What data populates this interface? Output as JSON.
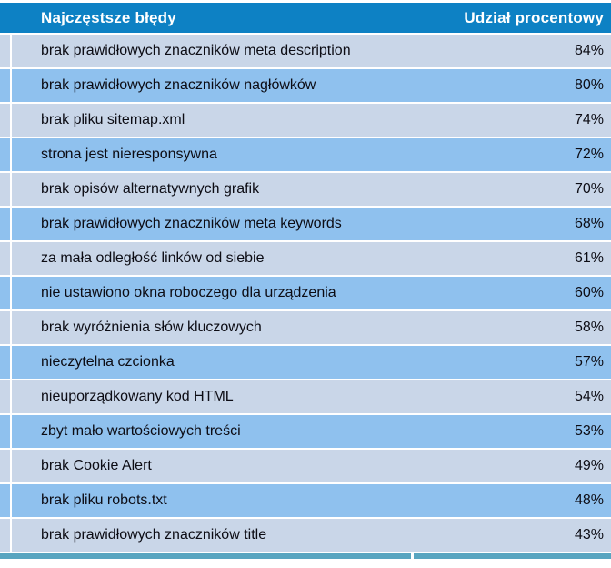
{
  "table": {
    "header": {
      "errors_label": "Najczęstsze błędy",
      "share_label": "Udział procentowy"
    },
    "rows": [
      {
        "label": "brak prawidłowych znaczników meta description",
        "value": "84%"
      },
      {
        "label": "brak prawidłowych znaczników nagłówków",
        "value": "80%"
      },
      {
        "label": "brak pliku sitemap.xml",
        "value": "74%"
      },
      {
        "label": "strona jest nieresponsywna",
        "value": "72%"
      },
      {
        "label": "brak opisów alternatywnych grafik",
        "value": "70%"
      },
      {
        "label": "brak prawidłowych znaczników meta keywords",
        "value": "68%"
      },
      {
        "label": "za mała odległość linków od siebie",
        "value": "61%"
      },
      {
        "label": "nie ustawiono okna roboczego dla urządzenia",
        "value": "60%"
      },
      {
        "label": "brak wyróżnienia słów kluczowych",
        "value": "58%"
      },
      {
        "label": "nieczytelna czcionka",
        "value": "57%"
      },
      {
        "label": "nieuporządkowany kod HTML",
        "value": "54%"
      },
      {
        "label": "zbyt mało wartościowych treści",
        "value": "53%"
      },
      {
        "label": "brak Cookie Alert",
        "value": "49%"
      },
      {
        "label": "brak pliku robots.txt",
        "value": "48%"
      },
      {
        "label": "brak prawidłowych znaczników title",
        "value": "43%"
      }
    ]
  },
  "colors": {
    "page_bg": "#ffffff",
    "header_bg": "#0d81c4",
    "header_text": "#ffffff",
    "row_light": "#c9d6e8",
    "row_medium": "#8fc1ee",
    "footer_strip": "#58a5c0",
    "text_dark": "#0c0c14"
  },
  "chart_data": {
    "type": "table",
    "title": "Najczęstsze błędy",
    "columns": [
      "Najczęstsze błędy",
      "Udział procentowy"
    ],
    "categories": [
      "brak prawidłowych znaczników meta description",
      "brak prawidłowych znaczników nagłówków",
      "brak pliku sitemap.xml",
      "strona jest nieresponsywna",
      "brak opisów alternatywnych grafik",
      "brak prawidłowych znaczników meta keywords",
      "za mała odległość linków od siebie",
      "nie ustawiono okna roboczego dla urządzenia",
      "brak wyróżnienia słów kluczowych",
      "nieczytelna czcionka",
      "nieuporządkowany kod HTML",
      "zbyt mało wartościowych treści",
      "brak Cookie Alert",
      "brak pliku robots.txt",
      "brak prawidłowych znaczników title"
    ],
    "values": [
      84,
      80,
      74,
      72,
      70,
      68,
      61,
      60,
      58,
      57,
      54,
      53,
      49,
      48,
      43
    ],
    "value_format": "percent",
    "layout": {
      "row_striping": [
        "light",
        "medium"
      ],
      "values_alignment": "right",
      "grid": false,
      "legend": false
    }
  }
}
